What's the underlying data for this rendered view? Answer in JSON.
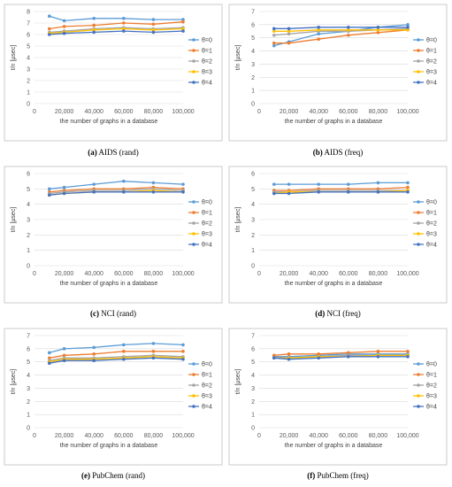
{
  "chart_data": [
    {
      "type": "line",
      "caption_letter": "(a)",
      "caption_text": "AIDS (rand)",
      "xlabel": "the number of graphs in a database",
      "ylabel": "t/n [μsec]",
      "x": [
        10000,
        20000,
        40000,
        60000,
        80000,
        100000
      ],
      "xticks": [
        0,
        20000,
        40000,
        60000,
        80000,
        100000
      ],
      "xtick_labels": [
        "0",
        "20,000",
        "40,000",
        "60,000",
        "80,000",
        "100,000"
      ],
      "xlim": [
        0,
        100000
      ],
      "ylim": [
        0,
        8
      ],
      "yticks": [
        0,
        1,
        2,
        3,
        4,
        5,
        6,
        7,
        8
      ],
      "ytick_labels": [
        "0",
        "1",
        "2",
        "3",
        "4",
        "5",
        "6",
        "7",
        "8"
      ],
      "grid": true,
      "legend": "right",
      "series": [
        {
          "name": "θ=0",
          "color": "#5b9bd5",
          "values": [
            7.6,
            7.2,
            7.4,
            7.4,
            7.3,
            7.3
          ]
        },
        {
          "name": "θ=1",
          "color": "#ed7d31",
          "values": [
            6.5,
            6.7,
            6.8,
            7.0,
            6.9,
            7.1
          ]
        },
        {
          "name": "θ=2",
          "color": "#a5a5a5",
          "values": [
            6.2,
            6.3,
            6.5,
            6.6,
            6.5,
            6.6
          ]
        },
        {
          "name": "θ=3",
          "color": "#ffc000",
          "values": [
            6.1,
            6.2,
            6.4,
            6.5,
            6.4,
            6.5
          ]
        },
        {
          "name": "θ=4",
          "color": "#4472c4",
          "values": [
            6.0,
            6.1,
            6.2,
            6.3,
            6.2,
            6.3
          ]
        }
      ]
    },
    {
      "type": "line",
      "caption_letter": "(b)",
      "caption_text": "AIDS (freq)",
      "xlabel": "the number of graphs in a database",
      "ylabel": "t/n [μsec]",
      "x": [
        10000,
        20000,
        40000,
        60000,
        80000,
        100000
      ],
      "xticks": [
        0,
        20000,
        40000,
        60000,
        80000,
        100000
      ],
      "xtick_labels": [
        "0",
        "20,000",
        "40,000",
        "60,000",
        "80,000",
        "100,000"
      ],
      "xlim": [
        0,
        100000
      ],
      "ylim": [
        0,
        7
      ],
      "yticks": [
        0,
        1,
        2,
        3,
        4,
        5,
        6,
        7
      ],
      "ytick_labels": [
        "0",
        "1",
        "2",
        "3",
        "4",
        "5",
        "6",
        "7"
      ],
      "grid": true,
      "legend": "right",
      "series": [
        {
          "name": "θ=0",
          "color": "#5b9bd5",
          "values": [
            4.4,
            4.7,
            5.3,
            5.5,
            5.8,
            6.0
          ]
        },
        {
          "name": "θ=1",
          "color": "#ed7d31",
          "values": [
            4.6,
            4.6,
            4.9,
            5.2,
            5.4,
            5.6
          ]
        },
        {
          "name": "θ=2",
          "color": "#a5a5a5",
          "values": [
            5.2,
            5.3,
            5.5,
            5.5,
            5.6,
            5.7
          ]
        },
        {
          "name": "θ=3",
          "color": "#ffc000",
          "values": [
            5.5,
            5.5,
            5.6,
            5.6,
            5.6,
            5.6
          ]
        },
        {
          "name": "θ=4",
          "color": "#4472c4",
          "values": [
            5.7,
            5.7,
            5.8,
            5.8,
            5.8,
            5.8
          ]
        }
      ]
    },
    {
      "type": "line",
      "caption_letter": "(c)",
      "caption_text": "NCI (rand)",
      "xlabel": "the number of graphs in a database",
      "ylabel": "t/n [μsec]",
      "x": [
        10000,
        20000,
        40000,
        60000,
        80000,
        100000
      ],
      "xticks": [
        0,
        20000,
        40000,
        60000,
        80000,
        100000
      ],
      "xtick_labels": [
        "0",
        "20,000",
        "40,000",
        "60,000",
        "80,000",
        "100,000"
      ],
      "xlim": [
        0,
        100000
      ],
      "ylim": [
        0,
        6
      ],
      "yticks": [
        0,
        1,
        2,
        3,
        4,
        5,
        6
      ],
      "ytick_labels": [
        "0",
        "1",
        "2",
        "3",
        "4",
        "5",
        "6"
      ],
      "grid": true,
      "legend": "right",
      "series": [
        {
          "name": "θ=0",
          "color": "#5b9bd5",
          "values": [
            5.0,
            5.1,
            5.3,
            5.5,
            5.4,
            5.3
          ]
        },
        {
          "name": "θ=1",
          "color": "#ed7d31",
          "values": [
            4.8,
            4.9,
            5.0,
            5.0,
            5.1,
            5.0
          ]
        },
        {
          "name": "θ=2",
          "color": "#a5a5a5",
          "values": [
            4.7,
            4.8,
            4.9,
            4.9,
            5.0,
            4.9
          ]
        },
        {
          "name": "θ=3",
          "color": "#ffc000",
          "values": [
            4.6,
            4.7,
            4.8,
            4.8,
            4.9,
            4.8
          ]
        },
        {
          "name": "θ=4",
          "color": "#4472c4",
          "values": [
            4.6,
            4.7,
            4.8,
            4.8,
            4.8,
            4.8
          ]
        }
      ]
    },
    {
      "type": "line",
      "caption_letter": "(d)",
      "caption_text": "NCI (freq)",
      "xlabel": "the number of graphs in a database",
      "ylabel": "t/n [μsec]",
      "x": [
        10000,
        20000,
        40000,
        60000,
        80000,
        100000
      ],
      "xticks": [
        0,
        20000,
        40000,
        60000,
        80000,
        100000
      ],
      "xtick_labels": [
        "0",
        "20,000",
        "40,000",
        "60,000",
        "80,000",
        "100,000"
      ],
      "xlim": [
        0,
        100000
      ],
      "ylim": [
        0,
        6
      ],
      "yticks": [
        0,
        1,
        2,
        3,
        4,
        5,
        6
      ],
      "ytick_labels": [
        "0",
        "1",
        "2",
        "3",
        "4",
        "5",
        "6"
      ],
      "grid": true,
      "legend": "right",
      "series": [
        {
          "name": "θ=0",
          "color": "#5b9bd5",
          "values": [
            5.3,
            5.3,
            5.3,
            5.3,
            5.4,
            5.4
          ]
        },
        {
          "name": "θ=1",
          "color": "#ed7d31",
          "values": [
            4.9,
            4.9,
            5.0,
            5.0,
            5.0,
            5.1
          ]
        },
        {
          "name": "θ=2",
          "color": "#a5a5a5",
          "values": [
            4.8,
            4.8,
            4.9,
            4.9,
            4.9,
            4.9
          ]
        },
        {
          "name": "θ=3",
          "color": "#ffc000",
          "values": [
            4.7,
            4.8,
            4.8,
            4.8,
            4.8,
            4.9
          ]
        },
        {
          "name": "θ=4",
          "color": "#4472c4",
          "values": [
            4.7,
            4.7,
            4.8,
            4.8,
            4.8,
            4.8
          ]
        }
      ]
    },
    {
      "type": "line",
      "caption_letter": "(e)",
      "caption_text": "PubChem (rand)",
      "xlabel": "the number of graphs in a database",
      "ylabel": "t/n [μsec]",
      "x": [
        10000,
        20000,
        40000,
        60000,
        80000,
        100000
      ],
      "xticks": [
        0,
        20000,
        40000,
        60000,
        80000,
        100000
      ],
      "xtick_labels": [
        "0",
        "20,000",
        "40,000",
        "60,000",
        "80,000",
        "100,000"
      ],
      "xlim": [
        0,
        100000
      ],
      "ylim": [
        0,
        7
      ],
      "yticks": [
        0,
        1,
        2,
        3,
        4,
        5,
        6,
        7
      ],
      "ytick_labels": [
        "0",
        "1",
        "2",
        "3",
        "4",
        "5",
        "6",
        "7"
      ],
      "grid": true,
      "legend": "right",
      "series": [
        {
          "name": "θ=0",
          "color": "#5b9bd5",
          "values": [
            5.7,
            6.0,
            6.1,
            6.3,
            6.4,
            6.3
          ]
        },
        {
          "name": "θ=1",
          "color": "#ed7d31",
          "values": [
            5.3,
            5.5,
            5.6,
            5.8,
            5.8,
            5.8
          ]
        },
        {
          "name": "θ=2",
          "color": "#a5a5a5",
          "values": [
            5.1,
            5.3,
            5.3,
            5.4,
            5.5,
            5.4
          ]
        },
        {
          "name": "θ=3",
          "color": "#ffc000",
          "values": [
            5.0,
            5.2,
            5.2,
            5.3,
            5.4,
            5.3
          ]
        },
        {
          "name": "θ=4",
          "color": "#4472c4",
          "values": [
            4.9,
            5.1,
            5.1,
            5.2,
            5.3,
            5.2
          ]
        }
      ]
    },
    {
      "type": "line",
      "caption_letter": "(f)",
      "caption_text": "PubChem (freq)",
      "xlabel": "the number of graphs in a database",
      "ylabel": "t/n [μsec]",
      "x": [
        10000,
        20000,
        40000,
        60000,
        80000,
        100000
      ],
      "xticks": [
        0,
        20000,
        40000,
        60000,
        80000,
        100000
      ],
      "xtick_labels": [
        "0",
        "20,000",
        "40,000",
        "60,000",
        "80,000",
        "100,000"
      ],
      "xlim": [
        0,
        100000
      ],
      "ylim": [
        0,
        7
      ],
      "yticks": [
        0,
        1,
        2,
        3,
        4,
        5,
        6,
        7
      ],
      "ytick_labels": [
        "0",
        "1",
        "2",
        "3",
        "4",
        "5",
        "6",
        "7"
      ],
      "grid": true,
      "legend": "right",
      "series": [
        {
          "name": "θ=0",
          "color": "#5b9bd5",
          "values": [
            5.4,
            5.4,
            5.5,
            5.6,
            5.6,
            5.6
          ]
        },
        {
          "name": "θ=1",
          "color": "#ed7d31",
          "values": [
            5.5,
            5.6,
            5.6,
            5.7,
            5.8,
            5.8
          ]
        },
        {
          "name": "θ=2",
          "color": "#a5a5a5",
          "values": [
            5.3,
            5.3,
            5.4,
            5.5,
            5.5,
            5.5
          ]
        },
        {
          "name": "θ=3",
          "color": "#ffc000",
          "values": [
            5.3,
            5.3,
            5.4,
            5.4,
            5.5,
            5.5
          ]
        },
        {
          "name": "θ=4",
          "color": "#4472c4",
          "values": [
            5.3,
            5.2,
            5.3,
            5.4,
            5.4,
            5.4
          ]
        }
      ]
    }
  ]
}
